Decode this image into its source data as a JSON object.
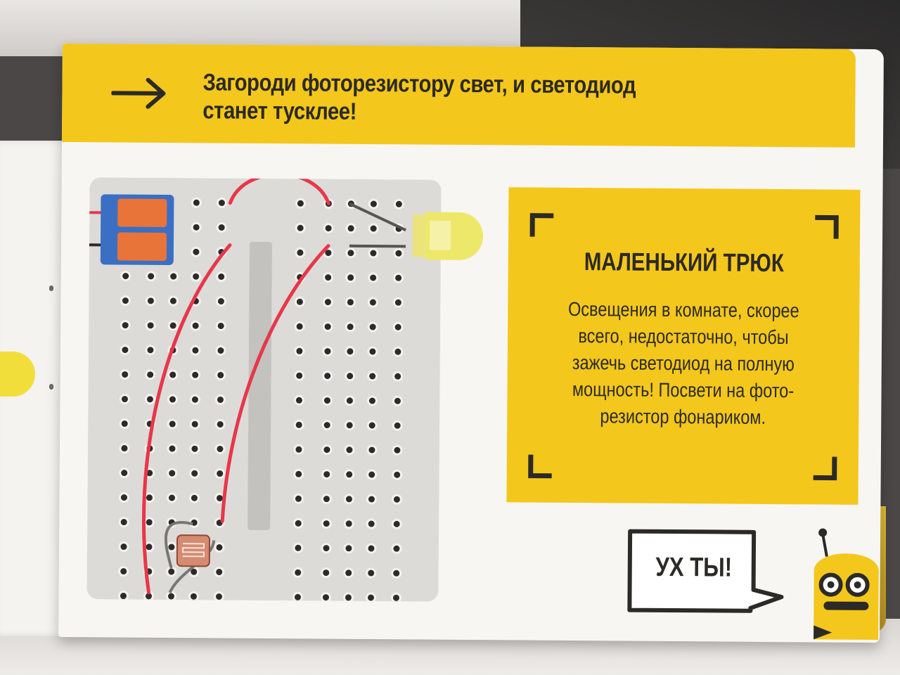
{
  "header": {
    "instruction": "Загороди фоторезистору свет, и светодиод станет  тусклее!",
    "arrow_icon": "right-arrow-icon"
  },
  "trick": {
    "title": "МАЛЕНЬКИЙ ТРЮК",
    "body_lines": [
      "Освещения в комнате, скорее",
      "всего, недостаточно, чтобы",
      "зажечь светодиод на полную",
      "мощность! Посвети на фото-",
      "резистор фонариком."
    ]
  },
  "speech": {
    "text": "УХ ТЫ!"
  },
  "colors": {
    "accent_yellow": "#f4c71c",
    "wire_red": "#e8364a",
    "board_gray": "#dcdbd8",
    "text_dark": "#2c2a27"
  },
  "icons": [
    "right-arrow-icon",
    "breadboard-illustration",
    "battery-connector-icon",
    "led-icon",
    "photoresistor-icon",
    "speech-bubble-icon",
    "robot-mascot-icon"
  ]
}
